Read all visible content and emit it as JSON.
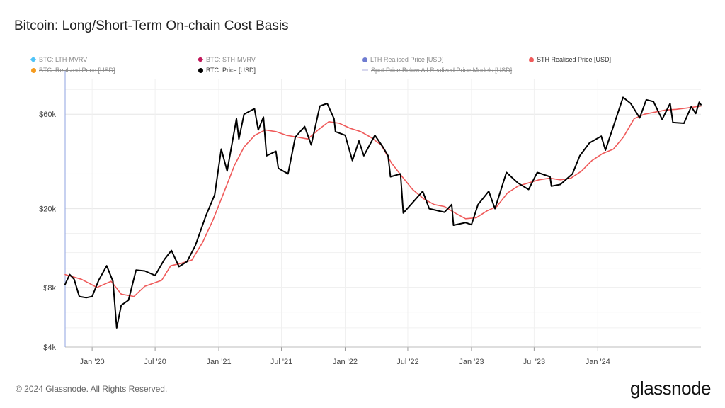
{
  "title": "Bitcoin: Long/Short-Term On-chain Cost Basis",
  "legend": [
    {
      "label": "BTC: LTH-MVRV",
      "color": "#4fc3f7",
      "active": false,
      "symbol": "diamond"
    },
    {
      "label": "BTC: STH-MVRV",
      "color": "#c2185b",
      "active": false,
      "symbol": "diamond"
    },
    {
      "label": "LTH Realised Price [USD]",
      "color": "#6f7cd1",
      "active": false,
      "symbol": "dot"
    },
    {
      "label": "STH Realised Price [USD]",
      "color": "#ef5a5a",
      "active": true,
      "symbol": "dot"
    },
    {
      "label": "BTC: Realized Price [USD]",
      "color": "#f59b1e",
      "active": false,
      "symbol": "dot"
    },
    {
      "label": "BTC: Price [USD]",
      "color": "#000000",
      "active": true,
      "symbol": "dot"
    },
    {
      "label": "Spot Price Below All Realized Price Models [USD]",
      "color": "#d8d8ee",
      "active": false,
      "symbol": "line"
    }
  ],
  "footer": "© 2024 Glassnode. All Rights Reserved.",
  "brand": "glassnode",
  "chart_data": {
    "type": "line",
    "y_scale": "log",
    "ylim": [
      4000,
      90000
    ],
    "xlim": [
      "2019-10-15",
      "2024-10-25"
    ],
    "y_ticks": [
      {
        "value": 4000,
        "label": "$4k"
      },
      {
        "value": 8000,
        "label": "$8k"
      },
      {
        "value": 20000,
        "label": "$20k"
      },
      {
        "value": 60000,
        "label": "$60k"
      }
    ],
    "x_ticks": [
      {
        "date": "2020-01-01",
        "label": "Jan '20"
      },
      {
        "date": "2020-07-01",
        "label": "Jul '20"
      },
      {
        "date": "2021-01-01",
        "label": "Jan '21"
      },
      {
        "date": "2021-07-01",
        "label": "Jul '21"
      },
      {
        "date": "2022-01-01",
        "label": "Jan '22"
      },
      {
        "date": "2022-07-01",
        "label": "Jul '22"
      },
      {
        "date": "2023-01-01",
        "label": "Jan '23"
      },
      {
        "date": "2023-07-01",
        "label": "Jul '23"
      },
      {
        "date": "2024-01-01",
        "label": "Jan '24"
      }
    ],
    "grid": true,
    "series": [
      {
        "name": "STH Realised Price [USD]",
        "color": "#ef5a5a",
        "points": [
          [
            "2019-10-15",
            9300
          ],
          [
            "2019-12-01",
            8800
          ],
          [
            "2020-01-15",
            8000
          ],
          [
            "2020-02-25",
            8600
          ],
          [
            "2020-03-25",
            7400
          ],
          [
            "2020-05-01",
            7200
          ],
          [
            "2020-06-01",
            8100
          ],
          [
            "2020-07-20",
            8700
          ],
          [
            "2020-08-15",
            10300
          ],
          [
            "2020-09-15",
            10600
          ],
          [
            "2020-10-15",
            11000
          ],
          [
            "2020-11-15",
            13500
          ],
          [
            "2020-12-15",
            17500
          ],
          [
            "2021-01-15",
            24000
          ],
          [
            "2021-02-15",
            33000
          ],
          [
            "2021-03-15",
            41000
          ],
          [
            "2021-04-15",
            47000
          ],
          [
            "2021-05-15",
            50000
          ],
          [
            "2021-06-15",
            49000
          ],
          [
            "2021-07-15",
            47000
          ],
          [
            "2021-08-15",
            46000
          ],
          [
            "2021-09-15",
            45000
          ],
          [
            "2021-10-15",
            50000
          ],
          [
            "2021-11-15",
            55000
          ],
          [
            "2021-12-15",
            54000
          ],
          [
            "2022-01-15",
            51000
          ],
          [
            "2022-02-15",
            49000
          ],
          [
            "2022-03-15",
            46000
          ],
          [
            "2022-04-15",
            42000
          ],
          [
            "2022-05-15",
            34000
          ],
          [
            "2022-06-15",
            29000
          ],
          [
            "2022-07-15",
            25000
          ],
          [
            "2022-08-15",
            22500
          ],
          [
            "2022-09-15",
            21000
          ],
          [
            "2022-10-15",
            20500
          ],
          [
            "2022-11-15",
            19000
          ],
          [
            "2022-12-15",
            17800
          ],
          [
            "2023-01-15",
            18000
          ],
          [
            "2023-02-15",
            19500
          ],
          [
            "2023-03-15",
            20500
          ],
          [
            "2023-04-15",
            24000
          ],
          [
            "2023-05-15",
            26000
          ],
          [
            "2023-06-15",
            27000
          ],
          [
            "2023-07-15",
            28000
          ],
          [
            "2023-08-15",
            28500
          ],
          [
            "2023-09-15",
            28000
          ],
          [
            "2023-10-15",
            28500
          ],
          [
            "2023-11-15",
            31000
          ],
          [
            "2023-12-15",
            35000
          ],
          [
            "2024-01-15",
            38000
          ],
          [
            "2024-02-15",
            40000
          ],
          [
            "2024-03-15",
            46000
          ],
          [
            "2024-04-15",
            57000
          ],
          [
            "2024-05-15",
            60000
          ],
          [
            "2024-06-15",
            61500
          ],
          [
            "2024-07-15",
            63000
          ],
          [
            "2024-08-15",
            63500
          ],
          [
            "2024-09-15",
            64500
          ],
          [
            "2024-10-25",
            66000
          ]
        ]
      },
      {
        "name": "BTC: Price [USD]",
        "color": "#000000",
        "points": [
          [
            "2019-10-15",
            8300
          ],
          [
            "2019-10-28",
            9300
          ],
          [
            "2019-11-10",
            8800
          ],
          [
            "2019-11-25",
            7200
          ],
          [
            "2019-12-15",
            7100
          ],
          [
            "2020-01-01",
            7200
          ],
          [
            "2020-01-20",
            8700
          ],
          [
            "2020-02-12",
            10300
          ],
          [
            "2020-03-01",
            8600
          ],
          [
            "2020-03-12",
            5000
          ],
          [
            "2020-03-25",
            6500
          ],
          [
            "2020-04-15",
            6900
          ],
          [
            "2020-05-07",
            9800
          ],
          [
            "2020-06-01",
            9700
          ],
          [
            "2020-07-01",
            9200
          ],
          [
            "2020-07-28",
            11100
          ],
          [
            "2020-08-17",
            12300
          ],
          [
            "2020-09-08",
            10200
          ],
          [
            "2020-10-01",
            10800
          ],
          [
            "2020-10-25",
            13000
          ],
          [
            "2020-11-25",
            18500
          ],
          [
            "2020-12-20",
            23500
          ],
          [
            "2021-01-08",
            40000
          ],
          [
            "2021-01-25",
            31000
          ],
          [
            "2021-02-21",
            57000
          ],
          [
            "2021-02-28",
            45000
          ],
          [
            "2021-03-15",
            60000
          ],
          [
            "2021-04-14",
            64000
          ],
          [
            "2021-04-25",
            50000
          ],
          [
            "2021-05-10",
            58000
          ],
          [
            "2021-05-19",
            37000
          ],
          [
            "2021-06-15",
            39000
          ],
          [
            "2021-06-22",
            32000
          ],
          [
            "2021-07-20",
            30000
          ],
          [
            "2021-08-10",
            46000
          ],
          [
            "2021-09-06",
            52000
          ],
          [
            "2021-09-25",
            42000
          ],
          [
            "2021-10-20",
            66000
          ],
          [
            "2021-11-10",
            68000
          ],
          [
            "2021-11-30",
            57000
          ],
          [
            "2021-12-04",
            49000
          ],
          [
            "2022-01-01",
            47000
          ],
          [
            "2022-01-22",
            35000
          ],
          [
            "2022-02-10",
            44000
          ],
          [
            "2022-02-24",
            37000
          ],
          [
            "2022-03-28",
            47000
          ],
          [
            "2022-04-20",
            41000
          ],
          [
            "2022-05-05",
            37000
          ],
          [
            "2022-05-12",
            29000
          ],
          [
            "2022-06-10",
            30000
          ],
          [
            "2022-06-18",
            19000
          ],
          [
            "2022-07-10",
            21000
          ],
          [
            "2022-08-13",
            24500
          ],
          [
            "2022-09-01",
            20000
          ],
          [
            "2022-10-15",
            19200
          ],
          [
            "2022-11-05",
            21000
          ],
          [
            "2022-11-10",
            16500
          ],
          [
            "2022-12-15",
            17000
          ],
          [
            "2023-01-01",
            16600
          ],
          [
            "2023-01-20",
            21000
          ],
          [
            "2023-02-20",
            24500
          ],
          [
            "2023-03-10",
            20000
          ],
          [
            "2023-04-12",
            30500
          ],
          [
            "2023-05-15",
            27000
          ],
          [
            "2023-06-15",
            25000
          ],
          [
            "2023-07-10",
            30500
          ],
          [
            "2023-08-16",
            29000
          ],
          [
            "2023-08-20",
            26000
          ],
          [
            "2023-09-15",
            26500
          ],
          [
            "2023-10-20",
            30000
          ],
          [
            "2023-11-10",
            37000
          ],
          [
            "2023-12-08",
            43000
          ],
          [
            "2024-01-11",
            46500
          ],
          [
            "2024-01-23",
            39500
          ],
          [
            "2024-02-15",
            52000
          ],
          [
            "2024-03-14",
            73000
          ],
          [
            "2024-04-05",
            68000
          ],
          [
            "2024-05-01",
            57500
          ],
          [
            "2024-05-20",
            71000
          ],
          [
            "2024-06-10",
            69500
          ],
          [
            "2024-07-05",
            56500
          ],
          [
            "2024-07-28",
            68000
          ],
          [
            "2024-08-05",
            54500
          ],
          [
            "2024-09-06",
            54000
          ],
          [
            "2024-09-27",
            65500
          ],
          [
            "2024-10-10",
            60500
          ],
          [
            "2024-10-20",
            69000
          ],
          [
            "2024-10-25",
            67000
          ]
        ]
      }
    ]
  }
}
